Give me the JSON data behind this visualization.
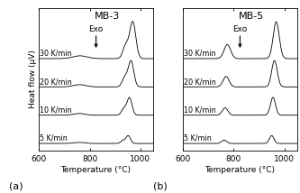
{
  "panel_a_title": "MB-3",
  "panel_b_title": "MB-5",
  "xlabel": "Temperature (°C)",
  "ylabel": "Heat flow (μV)",
  "xlim": [
    600,
    1050
  ],
  "xticks": [
    600,
    800,
    1000
  ],
  "xticklabels": [
    "600",
    "800",
    "1000"
  ],
  "rates": [
    "30 K/min",
    "20 K/min",
    "10 K/min",
    "5 K/min"
  ],
  "exo_label": "Exo",
  "panel_labels": [
    "(a)",
    "(b)"
  ],
  "bg_color": "#ffffff",
  "line_color": "#000000",
  "label_fontsize": 6.5,
  "tick_fontsize": 6.5,
  "title_fontsize": 8,
  "panel_label_fontsize": 8,
  "rate_label_fontsize": 5.8,
  "figsize": [
    3.33,
    2.14
  ],
  "dpi": 100,
  "trace_offsets": [
    3.0,
    2.0,
    1.0,
    0.0
  ],
  "mb3_bump_amps": [
    0.1,
    0.08,
    0.06,
    0.04
  ],
  "mb3_bump_mus": [
    762,
    760,
    758,
    756
  ],
  "mb3_bump_sigs": [
    28,
    25,
    22,
    20
  ],
  "mb3_peak1_amps": [
    0.45,
    0.32,
    0.22,
    0.1
  ],
  "mb3_peak1_mus": [
    942,
    938,
    934,
    930
  ],
  "mb3_peak1_sigs": [
    11,
    10,
    9,
    8
  ],
  "mb3_peak2_amps": [
    1.3,
    0.92,
    0.62,
    0.28
  ],
  "mb3_peak2_mus": [
    970,
    963,
    957,
    952
  ],
  "mb3_peak2_sigs": [
    12,
    11,
    10,
    9
  ],
  "mb5_peak1_amps": [
    0.5,
    0.37,
    0.26,
    0.12
  ],
  "mb5_peak1_mus": [
    775,
    770,
    766,
    762
  ],
  "mb5_peak1_sigs": [
    13,
    12,
    11,
    10
  ],
  "mb5_peak2_amps": [
    1.3,
    0.93,
    0.63,
    0.28
  ],
  "mb5_peak2_mus": [
    968,
    961,
    955,
    950
  ],
  "mb5_peak2_sigs": [
    12,
    11,
    10,
    9
  ],
  "ylim": [
    -0.25,
    4.8
  ]
}
